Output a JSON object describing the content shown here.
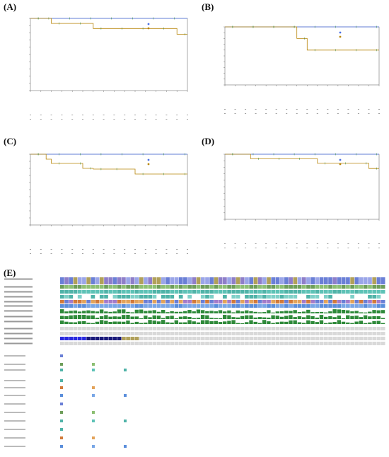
{
  "figure": {
    "panels": [
      {
        "id": "A",
        "label": "(A)"
      },
      {
        "id": "B",
        "label": "(B)"
      },
      {
        "id": "C",
        "label": "(C)"
      },
      {
        "id": "D",
        "label": "(D)"
      },
      {
        "id": "E",
        "label": "(E)"
      }
    ]
  },
  "colors": {
    "group1": "#4a6fe3",
    "group2": "#b8860b",
    "censor": "#2f8a3a",
    "axis": "#555555",
    "grid": "#eeeeee"
  },
  "chart_data": [
    {
      "panel": "A",
      "type": "line",
      "xlim": [
        0,
        30
      ],
      "ylim": [
        0,
        100
      ],
      "series": [
        {
          "color_key": "group1",
          "x": [
            0,
            2,
            2,
            30
          ],
          "y": [
            100,
            100,
            100,
            100
          ]
        },
        {
          "color_key": "group2",
          "x": [
            0,
            4,
            4,
            12,
            12,
            20,
            20,
            28,
            28,
            30
          ],
          "y": [
            100,
            100,
            93,
            93,
            86,
            86,
            86,
            86,
            78,
            78
          ]
        }
      ]
    },
    {
      "panel": "B",
      "type": "line",
      "xlim": [
        0,
        30
      ],
      "ylim": [
        0,
        100
      ],
      "series": [
        {
          "color_key": "group1",
          "x": [
            0,
            30
          ],
          "y": [
            100,
            100
          ]
        },
        {
          "color_key": "group2",
          "x": [
            0,
            14,
            14,
            16,
            16,
            30
          ],
          "y": [
            100,
            100,
            80,
            80,
            60,
            60
          ]
        }
      ]
    },
    {
      "panel": "C",
      "type": "line",
      "xlim": [
        0,
        30
      ],
      "ylim": [
        0,
        100
      ],
      "series": [
        {
          "color_key": "group1",
          "x": [
            0,
            30
          ],
          "y": [
            100,
            100
          ]
        },
        {
          "color_key": "group2",
          "x": [
            0,
            3,
            3,
            4,
            4,
            10,
            10,
            12,
            12,
            15,
            15,
            20,
            20,
            30
          ],
          "y": [
            100,
            100,
            93,
            93,
            87,
            87,
            80,
            80,
            79,
            79,
            79,
            79,
            72,
            72
          ]
        }
      ]
    },
    {
      "panel": "D",
      "type": "line",
      "xlim": [
        0,
        30
      ],
      "ylim": [
        0,
        100
      ],
      "series": [
        {
          "color_key": "group1",
          "x": [
            0,
            30
          ],
          "y": [
            100,
            100
          ]
        },
        {
          "color_key": "group2",
          "x": [
            0,
            5,
            5,
            18,
            18,
            28,
            28,
            30
          ],
          "y": [
            100,
            100,
            93,
            93,
            86,
            86,
            78,
            78
          ]
        }
      ]
    }
  ]
}
